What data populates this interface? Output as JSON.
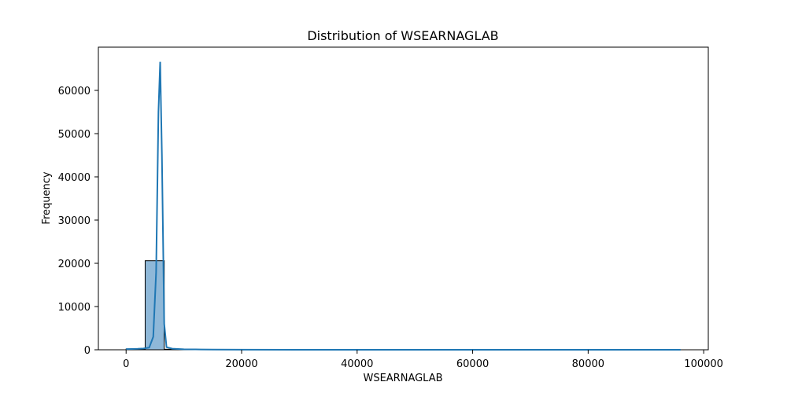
{
  "chart_data": {
    "type": "histogram",
    "title": "Distribution of WSEARNAGLAB",
    "xlabel": "WSEARNAGLAB",
    "ylabel": "Frequency",
    "xlim": [
      -4800,
      100800
    ],
    "ylim": [
      0,
      70000
    ],
    "x_ticks": [
      0,
      20000,
      40000,
      60000,
      80000,
      100000
    ],
    "y_ticks": [
      0,
      10000,
      20000,
      30000,
      40000,
      50000,
      60000
    ],
    "bins": [
      {
        "start": 0,
        "end": 3300,
        "count": 180
      },
      {
        "start": 3300,
        "end": 6600,
        "count": 20600
      },
      {
        "start": 6600,
        "end": 9900,
        "count": 120
      },
      {
        "start": 9900,
        "end": 13200,
        "count": 50
      },
      {
        "start": 13200,
        "end": 16500,
        "count": 35
      },
      {
        "start": 16500,
        "end": 19800,
        "count": 25
      },
      {
        "start": 19800,
        "end": 23100,
        "count": 15
      },
      {
        "start": 23100,
        "end": 26400,
        "count": 10
      },
      {
        "start": 26400,
        "end": 29700,
        "count": 8
      },
      {
        "start": 29700,
        "end": 33000,
        "count": 5
      },
      {
        "start": 33000,
        "end": 96000,
        "count": 2
      }
    ],
    "kde_line": [
      {
        "x": 0,
        "y": 150
      },
      {
        "x": 1000,
        "y": 180
      },
      {
        "x": 2000,
        "y": 220
      },
      {
        "x": 3000,
        "y": 300
      },
      {
        "x": 4000,
        "y": 500
      },
      {
        "x": 4700,
        "y": 3000
      },
      {
        "x": 5200,
        "y": 18000
      },
      {
        "x": 5600,
        "y": 55000
      },
      {
        "x": 5900,
        "y": 66600
      },
      {
        "x": 6200,
        "y": 45000
      },
      {
        "x": 6600,
        "y": 6000
      },
      {
        "x": 7000,
        "y": 600
      },
      {
        "x": 8000,
        "y": 250
      },
      {
        "x": 10000,
        "y": 120
      },
      {
        "x": 12000,
        "y": 80
      },
      {
        "x": 15000,
        "y": 50
      },
      {
        "x": 20000,
        "y": 20
      },
      {
        "x": 30000,
        "y": 8
      },
      {
        "x": 50000,
        "y": 3
      },
      {
        "x": 96000,
        "y": 1
      }
    ],
    "colors": {
      "bar_fill": "#8fb8d8",
      "bar_edge": "#000000",
      "line": "#1f77b4",
      "axis": "#000000"
    }
  }
}
